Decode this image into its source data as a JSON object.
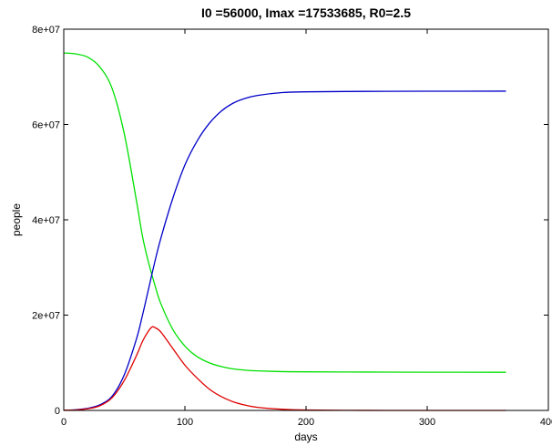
{
  "chart_data": {
    "type": "line",
    "title": "I0 =56000, Imax =17533685, R0=2.5",
    "xlabel": "days",
    "ylabel": "people",
    "xlim": [
      0,
      400
    ],
    "ylim": [
      0,
      80000000
    ],
    "x_ticks": [
      0,
      100,
      200,
      300,
      400
    ],
    "y_ticks": [
      0,
      20000000,
      40000000,
      60000000,
      80000000
    ],
    "x_tick_labels": [
      "0",
      "100",
      "200",
      "300",
      "400"
    ],
    "y_tick_labels": [
      "0",
      "2e+07",
      "4e+07",
      "6e+07",
      "8e+07"
    ],
    "grid": false,
    "legend": "none",
    "series": [
      {
        "color": "#00e000",
        "x": [
          0,
          10,
          20,
          30,
          40,
          50,
          60,
          65,
          70,
          75,
          80,
          90,
          100,
          110,
          120,
          130,
          140,
          150,
          160,
          180,
          200,
          250,
          300,
          365
        ],
        "y": [
          75000000,
          74800000,
          74100000,
          72000000,
          67500000,
          58000000,
          44000000,
          36500000,
          31000000,
          26500000,
          22500000,
          17000000,
          13500000,
          11300000,
          10000000,
          9200000,
          8700000,
          8450000,
          8300000,
          8150000,
          8100000,
          8050000,
          8020000,
          8000000
        ]
      },
      {
        "color": "#0000c8",
        "x": [
          0,
          10,
          20,
          30,
          40,
          50,
          60,
          65,
          70,
          75,
          80,
          90,
          100,
          110,
          120,
          130,
          140,
          150,
          160,
          180,
          200,
          250,
          300,
          365
        ],
        "y": [
          50000,
          150000,
          450000,
          1200000,
          3000000,
          7500000,
          15000000,
          20000000,
          25500000,
          31000000,
          36000000,
          44500000,
          51500000,
          56500000,
          60200000,
          62800000,
          64500000,
          65500000,
          66100000,
          66700000,
          66850000,
          66950000,
          66980000,
          67000000
        ]
      },
      {
        "color": "#e00000",
        "x": [
          0,
          10,
          20,
          30,
          40,
          50,
          60,
          65,
          70,
          73,
          75,
          80,
          90,
          100,
          110,
          120,
          130,
          140,
          150,
          160,
          180,
          200,
          250,
          300,
          365
        ],
        "y": [
          56000,
          100000,
          350000,
          1000000,
          2700000,
          6300000,
          11500000,
          14500000,
          16700000,
          17533685,
          17400000,
          16500000,
          13000000,
          9500000,
          6800000,
          4500000,
          2900000,
          1800000,
          1100000,
          650000,
          250000,
          80000,
          10000,
          1000,
          0
        ]
      }
    ]
  }
}
